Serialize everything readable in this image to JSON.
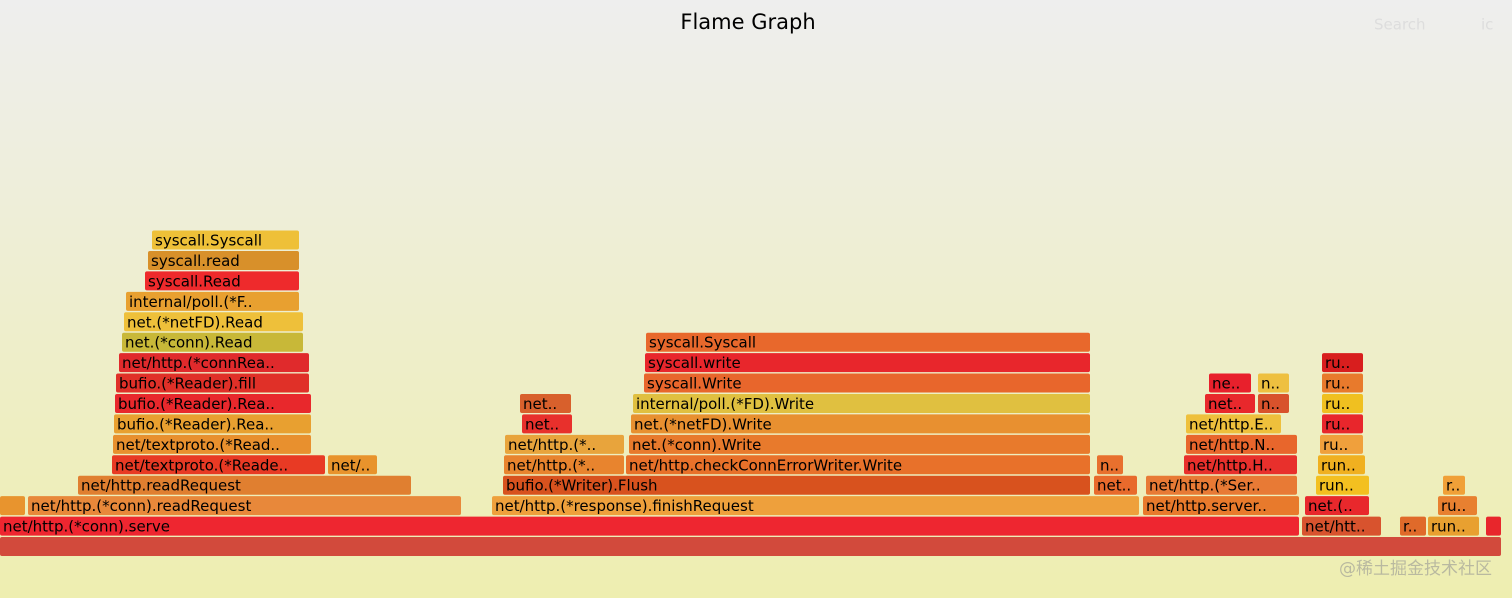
{
  "chart_data": {
    "type": "flamegraph",
    "title": "Flame Graph",
    "search": "Search",
    "reset_hint": "ic",
    "watermark": "@稀土掘金技术社区",
    "xlim": [
      0,
      1502
    ],
    "frames": [
      {
        "name": null,
        "start": 0,
        "value": 1502,
        "depth": 0,
        "color": "#d24a3c"
      },
      {
        "name": "net/http.(*conn).serve",
        "start": 0,
        "value": 1300,
        "depth": 1,
        "color": "#ee2630"
      },
      {
        "name": "net/htt..",
        "start": 1302,
        "value": 80,
        "depth": 1,
        "color": "#d8532e"
      },
      {
        "name": "r..",
        "start": 1400,
        "value": 27,
        "depth": 1,
        "color": "#e06a2a"
      },
      {
        "name": "run..",
        "start": 1428,
        "value": 52,
        "depth": 1,
        "color": "#e8a030"
      },
      {
        "name": null,
        "start": 1486,
        "value": 16,
        "depth": 1,
        "color": "#e8262c"
      },
      {
        "name": null,
        "start": 0,
        "value": 26,
        "depth": 2,
        "color": "#e8942e"
      },
      {
        "name": "net/http.(*conn).readRequest",
        "start": 28,
        "value": 434,
        "depth": 2,
        "color": "#e8883a"
      },
      {
        "name": "net/http.(*response).finishRequest",
        "start": 492,
        "value": 648,
        "depth": 2,
        "color": "#eea03c"
      },
      {
        "name": "net/http.server..",
        "start": 1143,
        "value": 157,
        "depth": 2,
        "color": "#e87a2c"
      },
      {
        "name": "net.(..",
        "start": 1305,
        "value": 65,
        "depth": 2,
        "color": "#e8282c"
      },
      {
        "name": "ru..",
        "start": 1438,
        "value": 40,
        "depth": 2,
        "color": "#e88030"
      },
      {
        "name": "net/http.readRequest",
        "start": 78,
        "value": 334,
        "depth": 3,
        "color": "#e07f30"
      },
      {
        "name": "bufio.(*Writer).Flush",
        "start": 503,
        "value": 588,
        "depth": 3,
        "color": "#d8521e"
      },
      {
        "name": "net..",
        "start": 1094,
        "value": 44,
        "depth": 3,
        "color": "#e86a2c"
      },
      {
        "name": "net/http.(*Ser..",
        "start": 1146,
        "value": 152,
        "depth": 3,
        "color": "#e87a35"
      },
      {
        "name": "run..",
        "start": 1316,
        "value": 54,
        "depth": 3,
        "color": "#f3c020"
      },
      {
        "name": "r..",
        "start": 1443,
        "value": 23,
        "depth": 3,
        "color": "#f0a038"
      },
      {
        "name": "net/textproto.(*Reade..",
        "start": 112,
        "value": 214,
        "depth": 4,
        "color": "#e83a24"
      },
      {
        "name": "net/..",
        "start": 328,
        "value": 50,
        "depth": 4,
        "color": "#e8932c"
      },
      {
        "name": "net/http.(*..",
        "start": 504,
        "value": 121,
        "depth": 4,
        "color": "#e8842e"
      },
      {
        "name": "net/http.checkConnErrorWriter.Write",
        "start": 626,
        "value": 465,
        "depth": 4,
        "color": "#e8712a"
      },
      {
        "name": "n..",
        "start": 1097,
        "value": 27,
        "depth": 4,
        "color": "#e8702e"
      },
      {
        "name": "net/http.H..",
        "start": 1184,
        "value": 114,
        "depth": 4,
        "color": "#e8302c"
      },
      {
        "name": "run..",
        "start": 1318,
        "value": 48,
        "depth": 4,
        "color": "#f0b020"
      },
      {
        "name": "net/textproto.(*Read..",
        "start": 113,
        "value": 199,
        "depth": 5,
        "color": "#e8902e"
      },
      {
        "name": "net/http.(*..",
        "start": 505,
        "value": 120,
        "depth": 5,
        "color": "#e8a43c"
      },
      {
        "name": "net.(*conn).Write",
        "start": 629,
        "value": 462,
        "depth": 5,
        "color": "#e87a2c"
      },
      {
        "name": "net/http.N..",
        "start": 1186,
        "value": 112,
        "depth": 5,
        "color": "#e8662c"
      },
      {
        "name": "ru..",
        "start": 1320,
        "value": 44,
        "depth": 5,
        "color": "#f0a03c"
      },
      {
        "name": "bufio.(*Reader).Rea..",
        "start": 114,
        "value": 198,
        "depth": 6,
        "color": "#e8a030"
      },
      {
        "name": "net..",
        "start": 522,
        "value": 51,
        "depth": 6,
        "color": "#e8302c"
      },
      {
        "name": "net.(*netFD).Write",
        "start": 631,
        "value": 460,
        "depth": 6,
        "color": "#e89030"
      },
      {
        "name": "net/http.E..",
        "start": 1186,
        "value": 96,
        "depth": 6,
        "color": "#eec03c"
      },
      {
        "name": "ru..",
        "start": 1322,
        "value": 42,
        "depth": 6,
        "color": "#e8262c"
      },
      {
        "name": "bufio.(*Reader).Rea..",
        "start": 115,
        "value": 197,
        "depth": 7,
        "color": "#e8282c"
      },
      {
        "name": "net..",
        "start": 520,
        "value": 52,
        "depth": 7,
        "color": "#d8602c"
      },
      {
        "name": "internal/poll.(*FD).Write",
        "start": 633,
        "value": 458,
        "depth": 7,
        "color": "#e0c040"
      },
      {
        "name": "net..",
        "start": 1205,
        "value": 51,
        "depth": 7,
        "color": "#e8282c"
      },
      {
        "name": "n..",
        "start": 1258,
        "value": 32,
        "depth": 7,
        "color": "#d8522c"
      },
      {
        "name": "ru..",
        "start": 1322,
        "value": 42,
        "depth": 7,
        "color": "#f0c020"
      },
      {
        "name": "bufio.(*Reader).fill",
        "start": 116,
        "value": 194,
        "depth": 8,
        "color": "#e03028"
      },
      {
        "name": "syscall.Write",
        "start": 644,
        "value": 447,
        "depth": 8,
        "color": "#e8662c"
      },
      {
        "name": "ne..",
        "start": 1209,
        "value": 43,
        "depth": 8,
        "color": "#e8202c"
      },
      {
        "name": "n..",
        "start": 1258,
        "value": 32,
        "depth": 8,
        "color": "#eec040"
      },
      {
        "name": "ru..",
        "start": 1322,
        "value": 42,
        "depth": 8,
        "color": "#e87a2c"
      },
      {
        "name": "net/http.(*connRea..",
        "start": 119,
        "value": 191,
        "depth": 9,
        "color": "#e02a2c"
      },
      {
        "name": "syscall.write",
        "start": 645,
        "value": 446,
        "depth": 9,
        "color": "#e8262c"
      },
      {
        "name": "ru..",
        "start": 1322,
        "value": 42,
        "depth": 9,
        "color": "#d81e1e"
      },
      {
        "name": "net.(*conn).Read",
        "start": 122,
        "value": 182,
        "depth": 10,
        "color": "#c8b838"
      },
      {
        "name": "syscall.Syscall",
        "start": 646,
        "value": 445,
        "depth": 10,
        "color": "#e8682c"
      },
      {
        "name": "net.(*netFD).Read",
        "start": 124,
        "value": 180,
        "depth": 11,
        "color": "#eec03a"
      },
      {
        "name": "internal/poll.(*F..",
        "start": 126,
        "value": 174,
        "depth": 12,
        "color": "#e8a030"
      },
      {
        "name": "syscall.Read",
        "start": 145,
        "value": 155,
        "depth": 13,
        "color": "#ee2a2c"
      },
      {
        "name": "syscall.read",
        "start": 148,
        "value": 152,
        "depth": 14,
        "color": "#d8902a"
      },
      {
        "name": "syscall.Syscall",
        "start": 152,
        "value": 148,
        "depth": 15,
        "color": "#eec038"
      }
    ]
  }
}
